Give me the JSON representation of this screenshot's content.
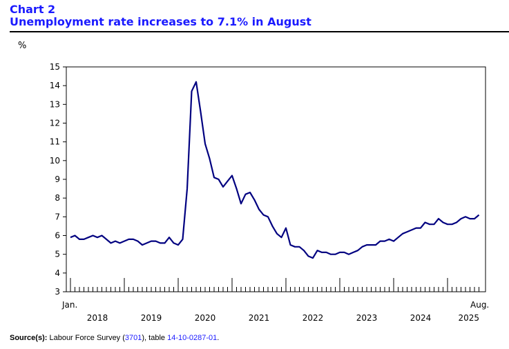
{
  "header": {
    "chart_number": "Chart 2",
    "title": "Unemployment rate increases to 7.1% in August"
  },
  "source": {
    "label": "Source(s):",
    "text1": "Labour Force Survey (",
    "survey_number": "3701",
    "text2": "), table ",
    "table_id": "14-10-0287-01",
    "text3": "."
  },
  "colors": {
    "title": "#1a1aff",
    "line": "#000080",
    "link": "#1a1aff"
  },
  "chart_data": {
    "type": "line",
    "ylabel": "%",
    "ylim": [
      3,
      15
    ],
    "yticks": [
      3,
      4,
      5,
      6,
      7,
      8,
      9,
      10,
      11,
      12,
      13,
      14,
      15
    ],
    "x_start_label": "Jan.",
    "x_end_label": "Aug.",
    "year_labels": [
      "2018",
      "2019",
      "2020",
      "2021",
      "2022",
      "2023",
      "2024",
      "2025"
    ],
    "x_period": "2018-01 to 2025-08 (monthly)",
    "grid": false,
    "series": [
      {
        "values": [
          5.9,
          6.0,
          5.8,
          5.8,
          5.9,
          6.0,
          5.9,
          6.0,
          5.8,
          5.6,
          5.7,
          5.6,
          5.7,
          5.8,
          5.8,
          5.7,
          5.5,
          5.6,
          5.7,
          5.7,
          5.6,
          5.6,
          5.9,
          5.6,
          5.5,
          5.8,
          8.5,
          13.7,
          14.2,
          12.6,
          10.9,
          10.1,
          9.1,
          9.0,
          8.6,
          8.9,
          9.2,
          8.5,
          7.7,
          8.2,
          8.3,
          7.9,
          7.4,
          7.1,
          7.0,
          6.5,
          6.1,
          5.9,
          6.4,
          5.5,
          5.4,
          5.4,
          5.2,
          4.9,
          4.8,
          5.2,
          5.1,
          5.1,
          5.0,
          5.0,
          5.1,
          5.1,
          5.0,
          5.1,
          5.2,
          5.4,
          5.5,
          5.5,
          5.5,
          5.7,
          5.7,
          5.8,
          5.7,
          5.9,
          6.1,
          6.2,
          6.3,
          6.4,
          6.4,
          6.7,
          6.6,
          6.6,
          6.9,
          6.7,
          6.6,
          6.6,
          6.7,
          6.9,
          7.0,
          6.9,
          6.9,
          7.1
        ]
      }
    ]
  }
}
